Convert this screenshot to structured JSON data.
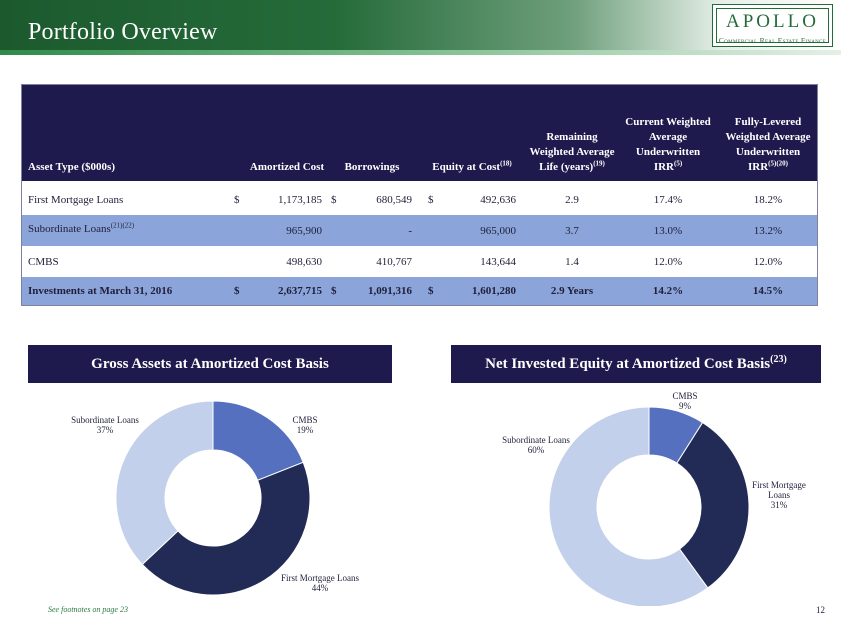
{
  "header": {
    "title": "Portfolio Overview",
    "logo_main": "APOLLO",
    "logo_sub": "Commercial Real Estate Finance",
    "colors": {
      "green": "#256b3a",
      "navy": "#1f1a4d"
    }
  },
  "table": {
    "headers": {
      "asset_type": "Asset Type ($000s)",
      "amortized_cost": "Amortized Cost",
      "borrowings": "Borrowings",
      "equity": "Equity at Cost",
      "equity_note": "(18)",
      "life_1": "Remaining",
      "life_2": "Weighted Average",
      "life_3": "Life (years)",
      "life_note": "(19)",
      "cur_1": "Current Weighted",
      "cur_2": "Average",
      "cur_3": "Underwritten",
      "cur_4": "IRR",
      "cur_note": "(5)",
      "full_1": "Fully-Levered",
      "full_2": "Weighted Average",
      "full_3": "Underwritten",
      "full_4": "IRR",
      "full_note": "(5)(20)"
    },
    "rows": [
      {
        "asset": "First Mortgage Loans",
        "note": "",
        "cost_sym": "$",
        "cost": "1,173,185",
        "borr_sym": "$",
        "borr": "680,549",
        "eq_sym": "$",
        "eq": "492,636",
        "life": "2.9",
        "cur_irr": "17.4%",
        "full_irr": "18.2%"
      },
      {
        "asset": "Subordinate Loans",
        "note": "(21)(22)",
        "cost_sym": "",
        "cost": "965,900",
        "borr_sym": "",
        "borr": "-",
        "eq_sym": "",
        "eq": "965,000",
        "life": "3.7",
        "cur_irr": "13.0%",
        "full_irr": "13.2%"
      },
      {
        "asset": "CMBS",
        "note": "",
        "cost_sym": "",
        "cost": "498,630",
        "borr_sym": "",
        "borr": "410,767",
        "eq_sym": "",
        "eq": "143,644",
        "life": "1.4",
        "cur_irr": "12.0%",
        "full_irr": "12.0%"
      }
    ],
    "total": {
      "asset": "Investments at March 31, 2016",
      "note": "",
      "cost_sym": "$",
      "cost": "2,637,715",
      "borr_sym": "$",
      "borr": "1,091,316",
      "eq_sym": "$",
      "eq": "1,601,280",
      "life": "2.9 Years",
      "cur_irr": "14.2%",
      "full_irr": "14.5%"
    }
  },
  "panels": {
    "left_title": "Gross Assets at Amortized Cost Basis",
    "right_title": "Net Invested Equity at Amortized Cost Basis",
    "right_note": "(23)"
  },
  "chart_data": [
    {
      "type": "pie",
      "title": "Gross Assets at Amortized Cost Basis",
      "categories": [
        "CMBS",
        "First Mortgage Loans",
        "Subordinate Loans"
      ],
      "values": [
        19,
        44,
        37
      ],
      "colors": [
        "#5570bf",
        "#222b55",
        "#c3d0eb"
      ]
    },
    {
      "type": "pie",
      "title": "Net Invested Equity at Amortized Cost Basis",
      "categories": [
        "CMBS",
        "First Mortgage Loans",
        "Subordinate Loans"
      ],
      "values": [
        9,
        31,
        60
      ],
      "colors": [
        "#5570bf",
        "#222b55",
        "#c3d0eb"
      ]
    }
  ],
  "footer": {
    "footnote": "See footnotes on page 23",
    "page": "12"
  }
}
